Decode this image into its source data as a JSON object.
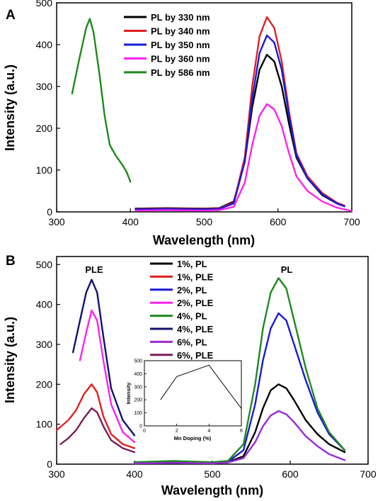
{
  "chart_data": [
    {
      "type": "line",
      "panel": "A",
      "xlabel": "Wavelength (nm)",
      "ylabel": "Intensity (a.u.)",
      "xlim": [
        300,
        700
      ],
      "ylim": [
        0,
        500
      ],
      "xticks": [
        300,
        400,
        500,
        600,
        700
      ],
      "yticks": [
        0,
        100,
        200,
        300,
        400,
        500
      ],
      "legend_position": "top-center",
      "series": [
        {
          "name": "PL by 330 nm",
          "color": "#000000",
          "x": [
            407,
            450,
            500,
            520,
            540,
            555,
            565,
            575,
            585,
            595,
            605,
            615,
            625,
            640,
            660,
            680,
            690
          ],
          "y": [
            8,
            9,
            8,
            9,
            25,
            120,
            250,
            340,
            376,
            360,
            300,
            210,
            130,
            80,
            40,
            20,
            14
          ]
        },
        {
          "name": "PL by 340 nm",
          "color": "#e02020",
          "x": [
            407,
            450,
            500,
            520,
            540,
            555,
            565,
            575,
            585,
            595,
            605,
            615,
            625,
            640,
            660,
            680,
            690
          ],
          "y": [
            7,
            8,
            7,
            8,
            22,
            130,
            300,
            420,
            466,
            440,
            360,
            240,
            140,
            85,
            45,
            22,
            15
          ]
        },
        {
          "name": "PL by 350 nm",
          "color": "#1a1ad8",
          "x": [
            407,
            450,
            500,
            520,
            540,
            555,
            565,
            575,
            585,
            595,
            605,
            615,
            625,
            640,
            660,
            680,
            690
          ],
          "y": [
            6,
            7,
            6,
            7,
            20,
            120,
            270,
            380,
            422,
            405,
            340,
            230,
            135,
            80,
            42,
            20,
            13
          ]
        },
        {
          "name": "PL by 360 nm",
          "color": "#ff22ee",
          "x": [
            407,
            450,
            500,
            520,
            540,
            555,
            565,
            575,
            585,
            595,
            605,
            615,
            625,
            640,
            660,
            680,
            700
          ],
          "y": [
            3,
            4,
            3,
            4,
            12,
            70,
            160,
            230,
            258,
            245,
            205,
            140,
            85,
            50,
            25,
            10,
            2
          ]
        },
        {
          "name": "PL by 586 nm",
          "color": "#1e8a1e",
          "x": [
            321,
            330,
            340,
            345,
            350,
            358,
            365,
            372,
            380,
            390,
            395,
            400
          ],
          "y": [
            283,
            360,
            440,
            462,
            430,
            330,
            230,
            160,
            135,
            110,
            95,
            72
          ]
        }
      ]
    },
    {
      "type": "line",
      "panel": "B",
      "xlabel": "Wavelength (nm)",
      "ylabel": "Intensity (a.u.)",
      "xlim": [
        300,
        700
      ],
      "ylim": [
        0,
        520
      ],
      "xticks": [
        300,
        400,
        500,
        600,
        700
      ],
      "yticks": [
        0,
        100,
        200,
        300,
        400,
        500
      ],
      "annotations": [
        "PLE",
        "PL"
      ],
      "legend_position": "top-center",
      "series": [
        {
          "name": "1%, PL",
          "color": "#000000",
          "x": [
            400,
            450,
            500,
            520,
            540,
            555,
            565,
            575,
            585,
            595,
            605,
            620,
            635,
            650,
            670
          ],
          "y": [
            3,
            4,
            3,
            5,
            20,
            80,
            140,
            185,
            200,
            190,
            160,
            110,
            75,
            50,
            30
          ]
        },
        {
          "name": "1%, PLE",
          "color": "#e02020",
          "x": [
            300,
            315,
            325,
            335,
            345,
            352,
            360,
            370,
            385,
            400
          ],
          "y": [
            85,
            110,
            135,
            175,
            200,
            180,
            120,
            75,
            50,
            40
          ]
        },
        {
          "name": "2%, PL",
          "color": "#1a1ad8",
          "x": [
            400,
            450,
            500,
            520,
            540,
            555,
            565,
            575,
            585,
            595,
            605,
            620,
            635,
            650,
            670
          ],
          "y": [
            3,
            5,
            3,
            6,
            35,
            150,
            260,
            340,
            378,
            360,
            300,
            210,
            130,
            75,
            35
          ]
        },
        {
          "name": "2%, PLE",
          "color": "#ff22ee",
          "x": [
            330,
            338,
            345,
            352,
            360,
            370,
            385,
            400
          ],
          "y": [
            260,
            330,
            385,
            360,
            260,
            150,
            80,
            55
          ]
        },
        {
          "name": "4%, PL",
          "color": "#1e8a1e",
          "x": [
            400,
            450,
            500,
            520,
            540,
            555,
            565,
            575,
            585,
            595,
            605,
            620,
            635,
            650,
            670
          ],
          "y": [
            5,
            8,
            5,
            8,
            50,
            200,
            340,
            430,
            466,
            440,
            360,
            240,
            140,
            80,
            35
          ]
        },
        {
          "name": "4%, PLE",
          "color": "#12126e",
          "x": [
            321,
            330,
            338,
            345,
            352,
            360,
            370,
            385,
            400
          ],
          "y": [
            280,
            360,
            430,
            462,
            430,
            320,
            190,
            110,
            72
          ]
        },
        {
          "name": "6%, PL",
          "color": "#9a2ad8",
          "x": [
            400,
            450,
            500,
            520,
            540,
            555,
            565,
            575,
            585,
            595,
            605,
            620,
            635,
            650,
            670
          ],
          "y": [
            2,
            3,
            2,
            4,
            15,
            55,
            95,
            122,
            133,
            125,
            105,
            70,
            45,
            25,
            10
          ]
        },
        {
          "name": "6%, PLE",
          "color": "#7a1e5a",
          "x": [
            305,
            315,
            325,
            335,
            345,
            352,
            360,
            370,
            385,
            400
          ],
          "y": [
            50,
            65,
            85,
            115,
            140,
            130,
            95,
            60,
            40,
            30
          ]
        }
      ],
      "inset": {
        "xlabel": "Mn Doping (%)",
        "ylabel": "Intensity",
        "xlim": [
          0,
          6
        ],
        "ylim": [
          0,
          500
        ],
        "xticks": [
          0,
          2,
          4,
          6
        ],
        "yticks": [
          0,
          100,
          200,
          300,
          400,
          500
        ],
        "x": [
          1,
          2,
          4,
          6
        ],
        "y": [
          200,
          378,
          466,
          133
        ]
      }
    }
  ]
}
